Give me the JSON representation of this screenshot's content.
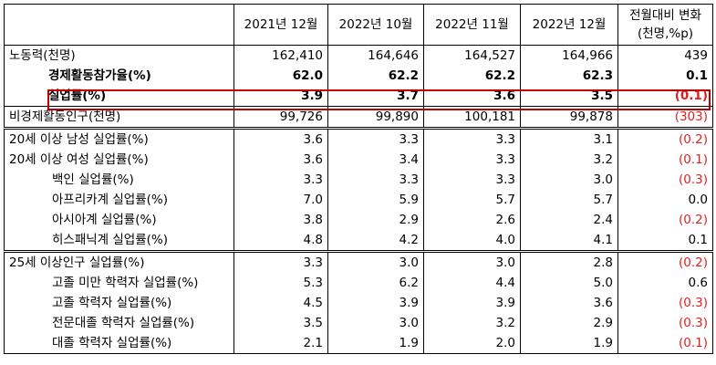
{
  "headers": [
    "",
    "2021년 12월",
    "2022년 10월",
    "2022년 11월",
    "2022년 12월",
    "전월대비 변화\n(천명,%p)"
  ],
  "rows": [
    {
      "label": "노동력(천명)",
      "v": [
        "162,410",
        "164,646",
        "164,527",
        "164,966",
        "439"
      ],
      "neg": false
    },
    {
      "label": "경제활동참가율(%)",
      "v": [
        "62.0",
        "62.2",
        "62.2",
        "62.3",
        "0.1"
      ],
      "neg": false
    },
    {
      "label": "실업률(%)",
      "v": [
        "3.9",
        "3.7",
        "3.6",
        "3.5",
        "(0.1)"
      ],
      "neg": true
    },
    {
      "label": "비경제활동인구(천명)",
      "v": [
        "99,726",
        "99,890",
        "100,181",
        "99,878",
        "(303)"
      ],
      "neg": true
    },
    {
      "label": "20세 이상 남성 실업률(%)",
      "v": [
        "3.6",
        "3.3",
        "3.3",
        "3.1",
        "(0.2)"
      ],
      "neg": true
    },
    {
      "label": "20세 이상 여성 실업률(%)",
      "v": [
        "3.6",
        "3.4",
        "3.3",
        "3.2",
        "(0.1)"
      ],
      "neg": true
    },
    {
      "label": "백인 실업률(%)",
      "v": [
        "3.3",
        "3.3",
        "3.3",
        "3.0",
        "(0.3)"
      ],
      "neg": true
    },
    {
      "label": "아프리카계 실업률(%)",
      "v": [
        "7.0",
        "5.9",
        "5.7",
        "5.7",
        "0.0"
      ],
      "neg": false
    },
    {
      "label": "아시아계 실업률(%)",
      "v": [
        "3.8",
        "2.9",
        "2.6",
        "2.4",
        "(0.2)"
      ],
      "neg": true
    },
    {
      "label": "히스패닉계 실업률(%)",
      "v": [
        "4.8",
        "4.2",
        "4.0",
        "4.1",
        "0.1"
      ],
      "neg": false
    },
    {
      "label": "25세 이상인구 실업률(%)",
      "v": [
        "3.3",
        "3.0",
        "3.0",
        "2.8",
        "(0.2)"
      ],
      "neg": true
    },
    {
      "label": "고졸 미만 학력자 실업률(%)",
      "v": [
        "5.3",
        "6.2",
        "4.4",
        "5.0",
        "0.6"
      ],
      "neg": false
    },
    {
      "label": "고졸 학력자 실업률(%)",
      "v": [
        "4.5",
        "3.9",
        "3.9",
        "3.6",
        "(0.3)"
      ],
      "neg": true
    },
    {
      "label": "전문대졸 학력자 실업률(%)",
      "v": [
        "3.5",
        "3.0",
        "3.2",
        "2.9",
        "(0.3)"
      ],
      "neg": true
    },
    {
      "label": "대졸 학력자 실업률(%)",
      "v": [
        "2.1",
        "1.9",
        "2.0",
        "1.9",
        "(0.1)"
      ],
      "neg": true
    }
  ],
  "colors": {
    "negative": "#e02020",
    "highlight_border": "#c00000"
  }
}
